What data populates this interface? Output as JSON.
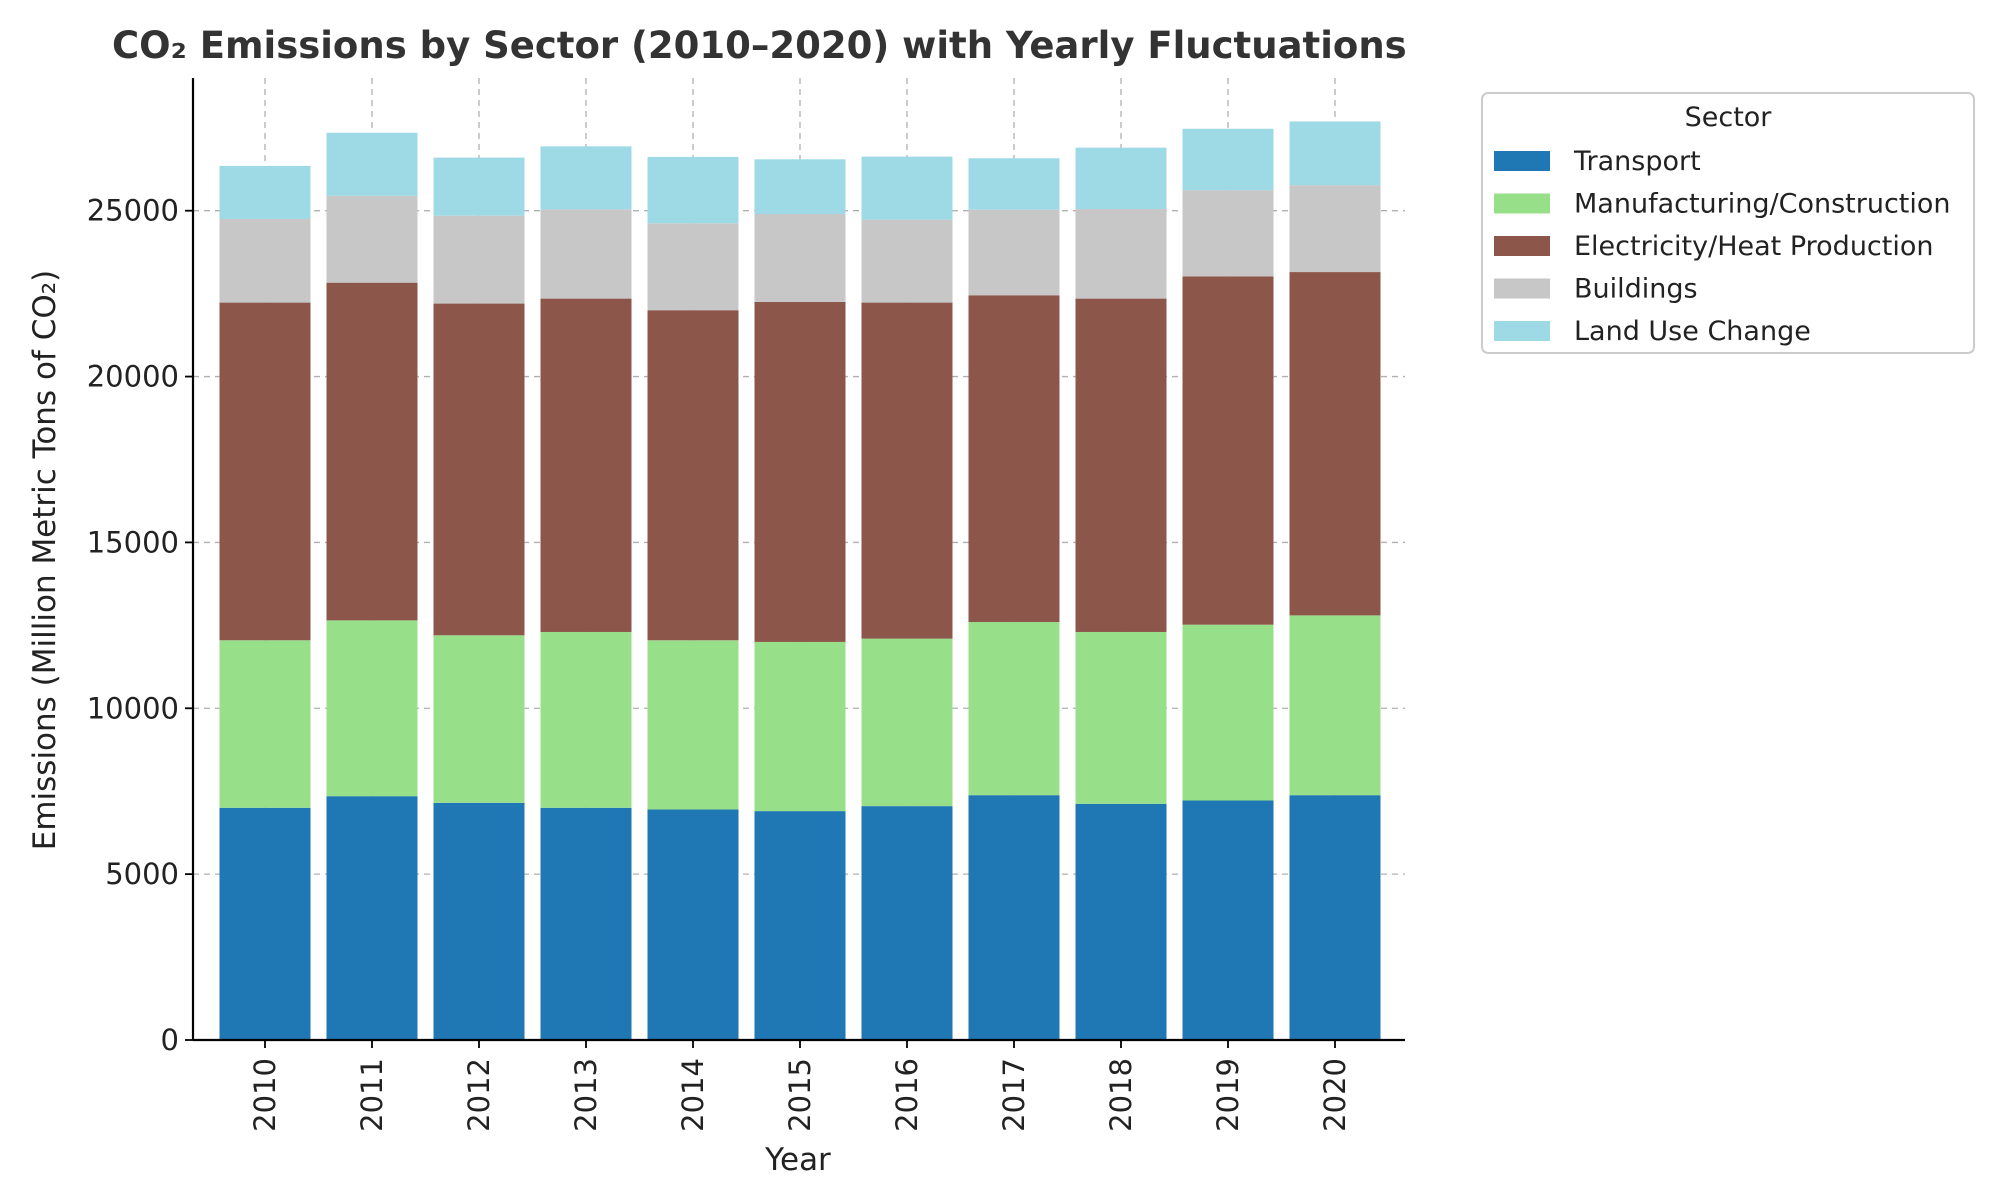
{
  "chart_data": {
    "type": "bar",
    "stacked": true,
    "title": "CO₂ Emissions by Sector (2010–2020) with Yearly Fluctuations",
    "xlabel": "Year",
    "ylabel": "Emissions (Million Metric Tons of CO₂)",
    "ylim": [
      0,
      29000
    ],
    "yticks": [
      0,
      5000,
      10000,
      15000,
      20000,
      25000
    ],
    "grid": true,
    "legend": {
      "title": "Sector",
      "placement": "outside-top-right"
    },
    "categories": [
      "2010",
      "2011",
      "2012",
      "2013",
      "2014",
      "2015",
      "2016",
      "2017",
      "2018",
      "2019",
      "2020"
    ],
    "series": [
      {
        "name": "Transport",
        "color": "#1f77b4",
        "values": [
          7000,
          7350,
          7150,
          7000,
          6950,
          6900,
          7050,
          7380,
          7120,
          7220,
          7380
        ]
      },
      {
        "name": "Manufacturing/Construction",
        "color": "#98df8a",
        "values": [
          5050,
          5300,
          5050,
          5300,
          5100,
          5100,
          5050,
          5220,
          5180,
          5300,
          5420
        ]
      },
      {
        "name": "Electricity/Heat Production",
        "color": "#8c564b",
        "values": [
          10180,
          10180,
          10000,
          10050,
          9950,
          10250,
          10130,
          9850,
          10050,
          10500,
          10350
        ]
      },
      {
        "name": "Buildings",
        "color": "#c7c7c7",
        "values": [
          2520,
          2620,
          2650,
          2690,
          2620,
          2650,
          2500,
          2580,
          2700,
          2600,
          2620
        ]
      },
      {
        "name": "Land Use Change",
        "color": "#9edae5",
        "values": [
          1600,
          1900,
          1750,
          1900,
          2000,
          1650,
          1900,
          1550,
          1850,
          1850,
          1920
        ]
      }
    ]
  }
}
